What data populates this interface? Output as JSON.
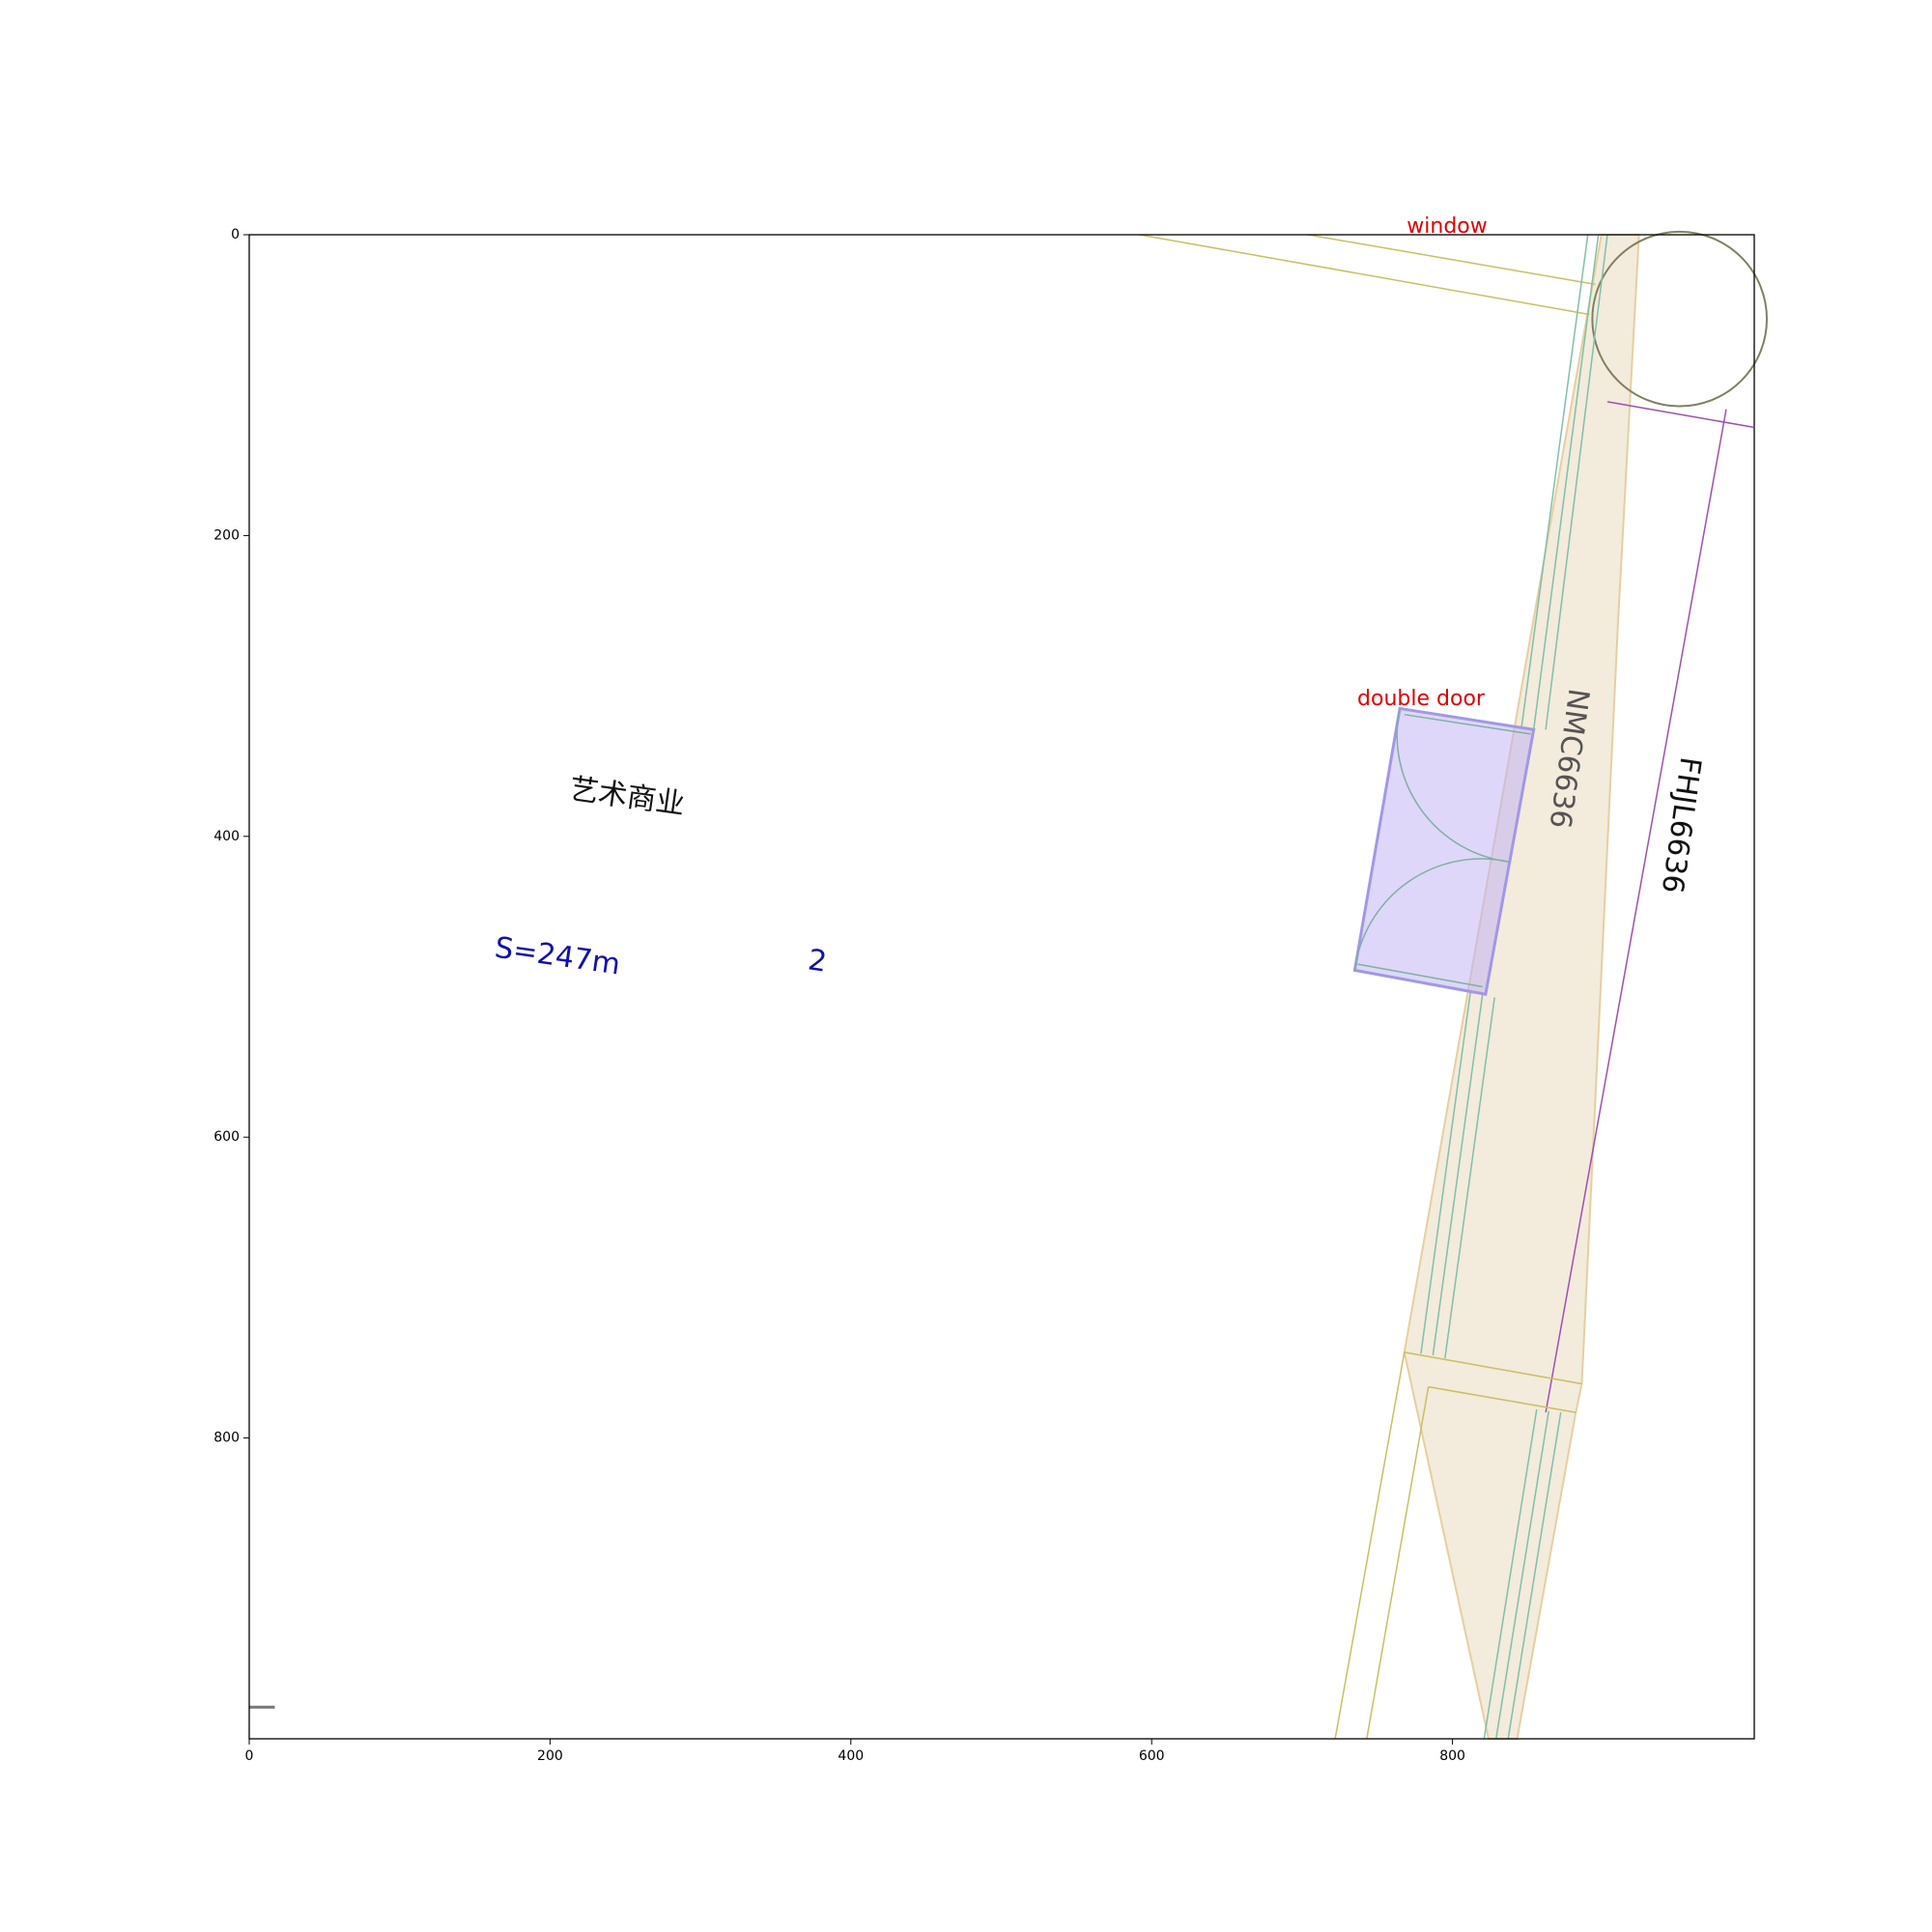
{
  "axes": {
    "xticks": [
      0,
      200,
      400,
      600,
      800
    ],
    "yticks": [
      0,
      200,
      400,
      600,
      800
    ]
  },
  "annotations": [
    "window",
    "double door"
  ],
  "room": {
    "name": "艺术商业",
    "area": "S=247m",
    "unit_power": "2"
  },
  "dimension_labels": [
    "NMC6636",
    "FHJL6636"
  ]
}
